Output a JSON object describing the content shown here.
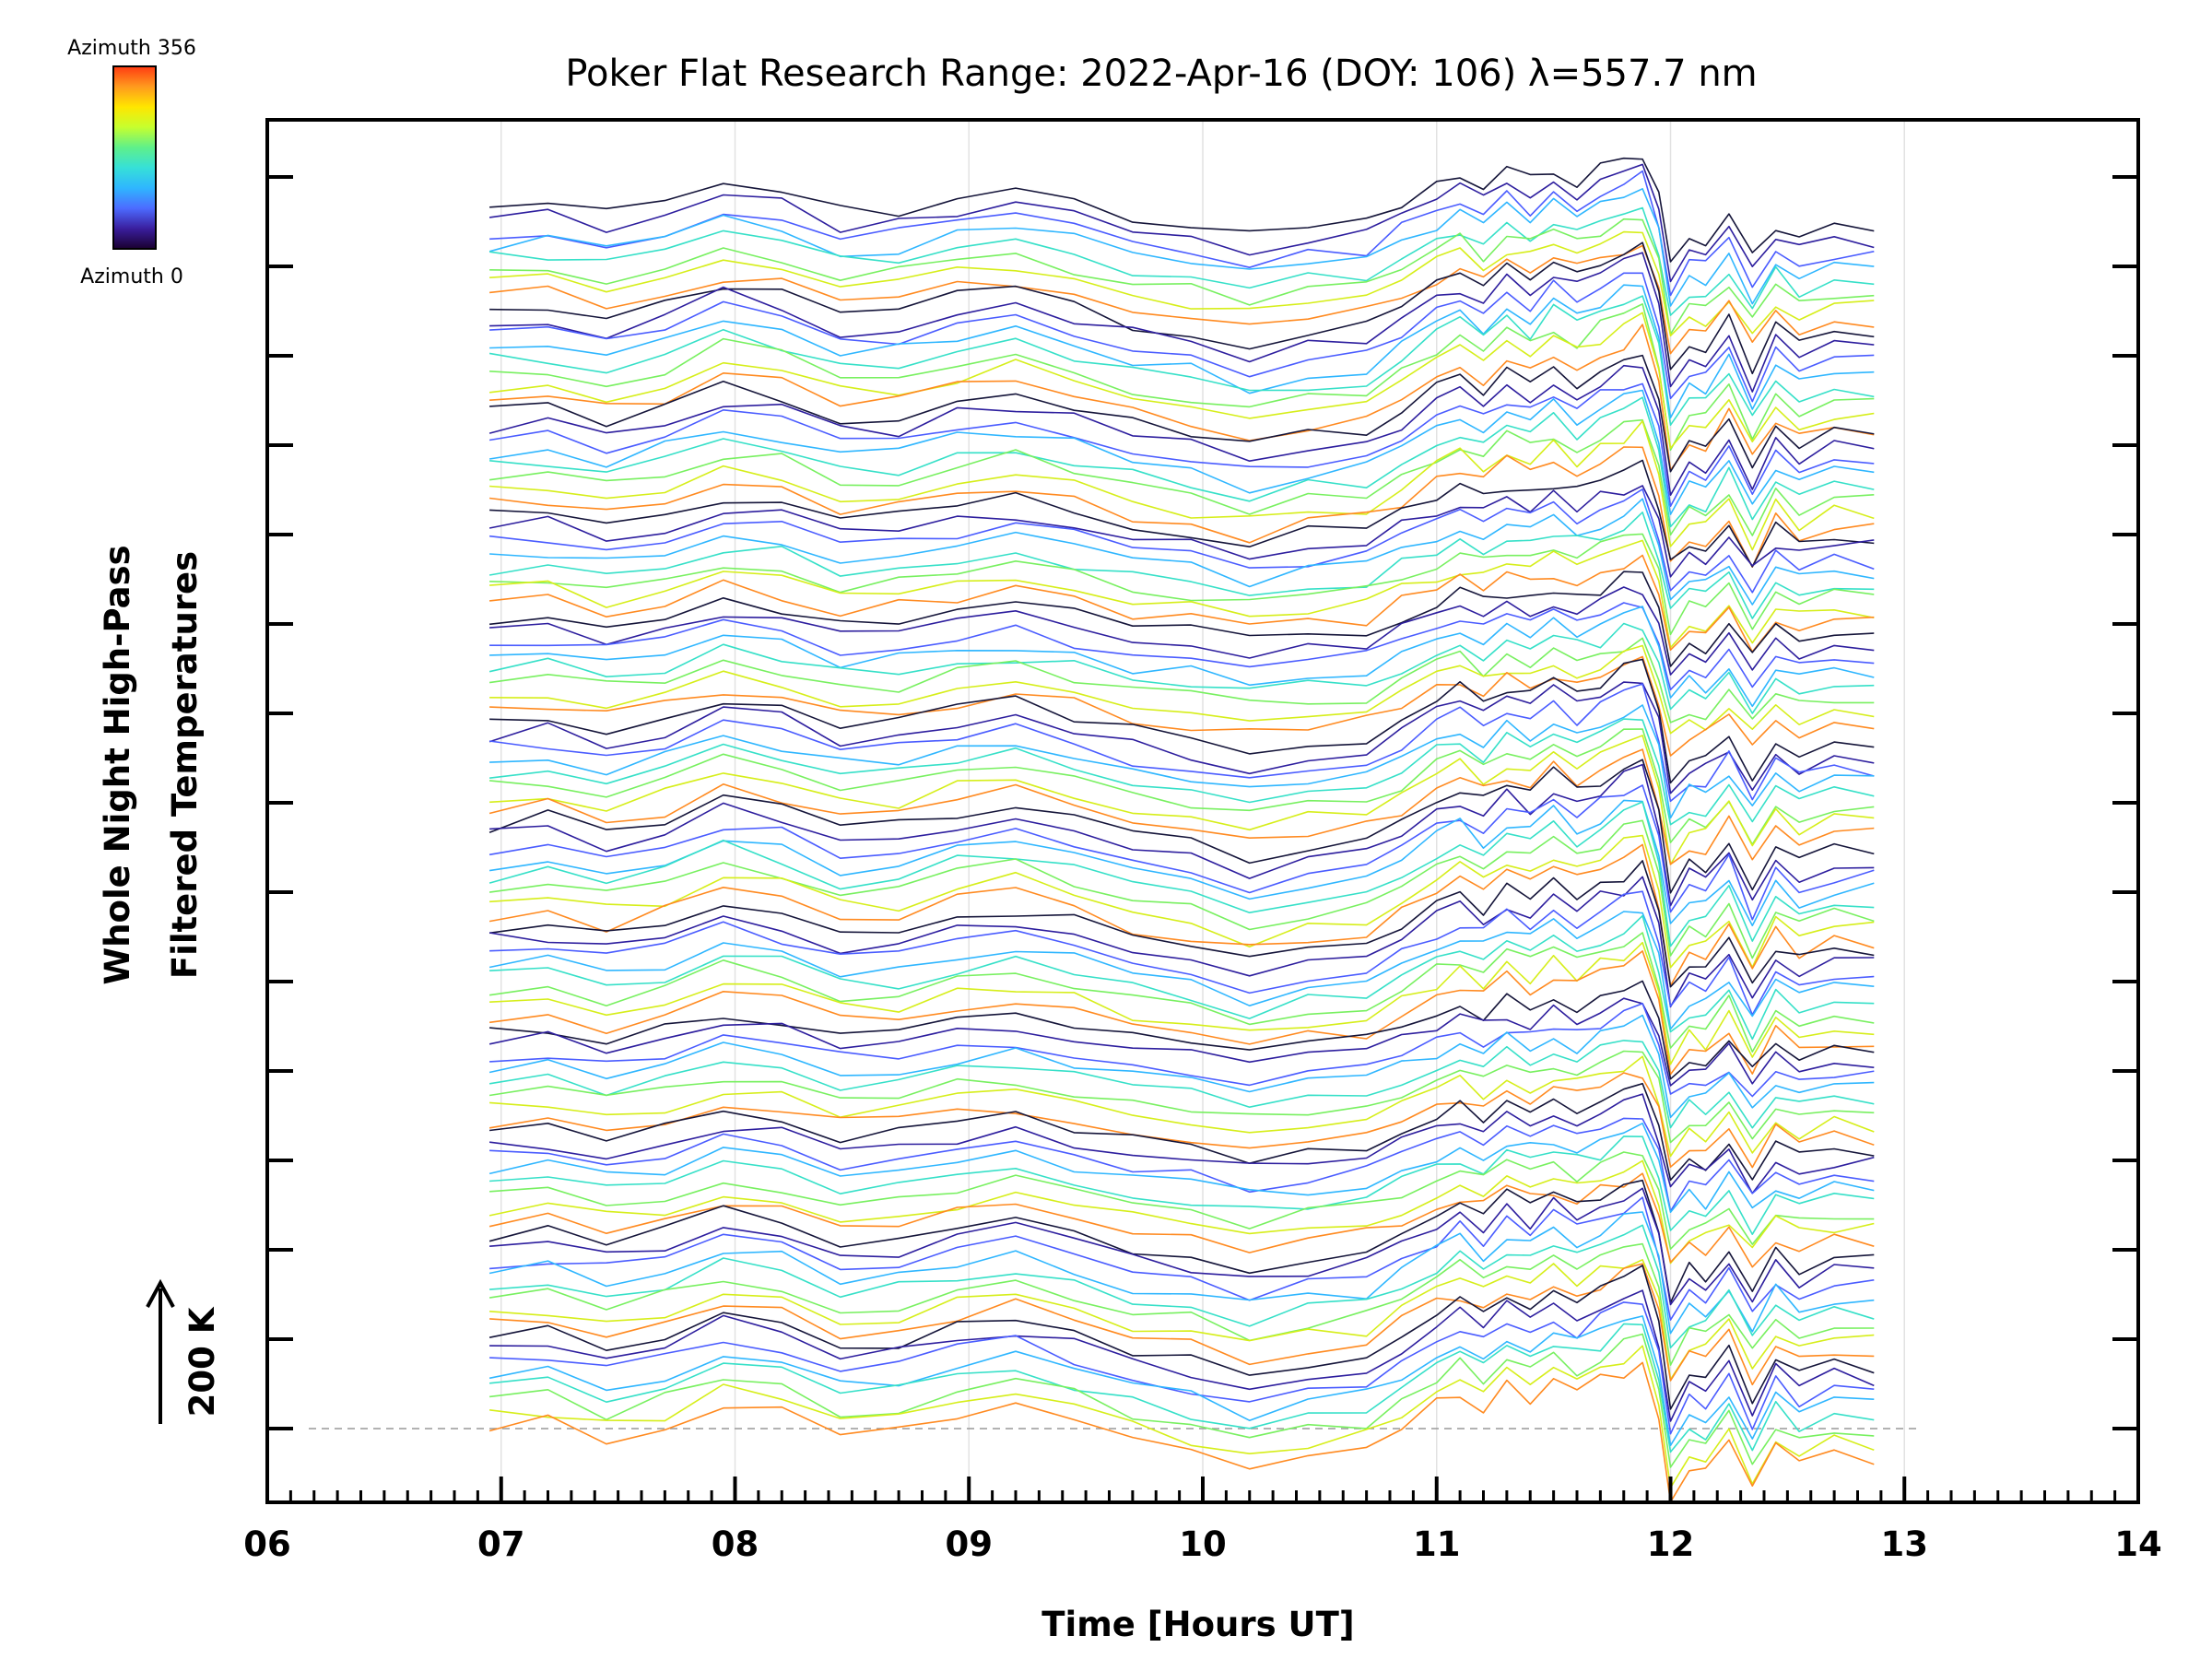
{
  "chart_data": {
    "type": "line",
    "title": "Poker Flat Research Range: 2022-Apr-16 (DOY: 106) λ=557.7 nm",
    "xlabel": "Time [Hours UT]",
    "ylabel": [
      "Whole Night High-Pass",
      "Filtered Temperatures"
    ],
    "xlim": [
      6,
      14
    ],
    "x_ticks": [
      "06",
      "07",
      "08",
      "09",
      "10",
      "11",
      "12",
      "13",
      "14"
    ],
    "grid": "vertical lines at each hour",
    "scale_bar": {
      "label": "200 K",
      "value_k": 200
    },
    "baseline": "dashed horizontal reference line",
    "colorbar": {
      "placement": "top-left",
      "top_label": "Azimuth 356",
      "bottom_label": "Azimuth 0",
      "colormap": [
        "#1a0030",
        "#3a1e9e",
        "#4c6bff",
        "#2fb6ff",
        "#36e0d8",
        "#5ff08a",
        "#c6ff2e",
        "#ffe600",
        "#ff9a1e",
        "#ff3a12"
      ]
    },
    "series_layout": "stacked traces, 12 bands x 8 azimuth colours each, vertical offsets are plotting offsets",
    "band_count": 12,
    "traces_per_band": 8,
    "trace_colors": [
      "#15153a",
      "#2d1e9e",
      "#4a5cff",
      "#2fb6ff",
      "#36e0c8",
      "#78f060",
      "#d6ee1a",
      "#ff8a20"
    ],
    "x": [
      6.95,
      7.2,
      7.45,
      7.7,
      7.95,
      8.2,
      8.45,
      8.7,
      8.95,
      9.2,
      9.45,
      9.7,
      9.95,
      10.2,
      10.45,
      10.7,
      10.85,
      11.0,
      11.1,
      11.2,
      11.3,
      11.4,
      11.5,
      11.6,
      11.7,
      11.8,
      11.88,
      11.95,
      12.0,
      12.08,
      12.15,
      12.25,
      12.35,
      12.45,
      12.55,
      12.7,
      12.87
    ],
    "shape": [
      0,
      10,
      -15,
      5,
      45,
      30,
      -10,
      -5,
      20,
      35,
      10,
      -20,
      -35,
      -60,
      -40,
      -30,
      5,
      40,
      60,
      35,
      70,
      50,
      80,
      55,
      75,
      95,
      110,
      20,
      -110,
      -60,
      -70,
      -20,
      -100,
      -30,
      -60,
      -40,
      -45
    ]
  }
}
